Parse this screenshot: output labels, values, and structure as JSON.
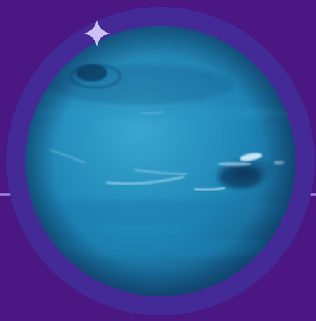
{
  "scene": {
    "subject": "planet-neptune",
    "icons": {
      "sparkle": "sparkle-icon",
      "planet": "planet-icon"
    },
    "colors": {
      "background": "#4b1782",
      "ring": "#432a96",
      "dash": "#9b86d8",
      "sparkle": "#c9c2f2",
      "planet_base": "#1e86b6",
      "planet_light": "#3aa6cf",
      "planet_dark": "#13527e",
      "storm": "#0d3f66",
      "cloud": "#d9f2ff"
    }
  }
}
